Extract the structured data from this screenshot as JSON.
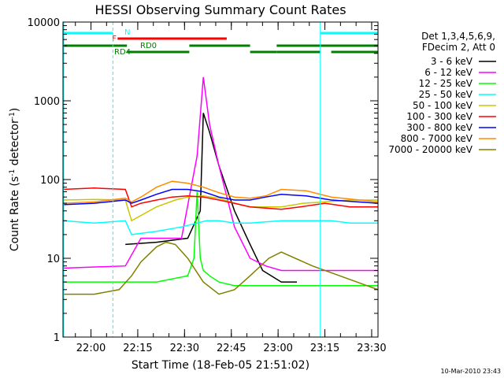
{
  "chart_data": {
    "type": "line",
    "title": "HESSI Observing Summary Count Rates",
    "xlabel": "Start Time (18-Feb-05 21:51:02)",
    "ylabel": "Count Rate (s⁻¹ detector⁻¹)",
    "ylabel_parts": [
      "Count Rate (s",
      "-1",
      " detector",
      "-1",
      ")"
    ],
    "yscale": "log",
    "ylim": [
      1,
      10000
    ],
    "xlim_minutes_after_21_51_02": [
      0,
      101
    ],
    "x_unit": "minutes after 21:51:02",
    "xticks": [
      {
        "label": "22:00",
        "x": 8.97
      },
      {
        "label": "22:15",
        "x": 23.97
      },
      {
        "label": "22:30",
        "x": 38.97
      },
      {
        "label": "22:45",
        "x": 53.97
      },
      {
        "label": "23:00",
        "x": 68.97
      },
      {
        "label": "23:15",
        "x": 83.97
      },
      {
        "label": "23:30",
        "x": 98.97
      }
    ],
    "yticks": [
      {
        "label": "1",
        "y": 1
      },
      {
        "label": "10",
        "y": 10
      },
      {
        "label": "100",
        "y": 100
      },
      {
        "label": "1000",
        "y": 1000
      },
      {
        "label": "10000",
        "y": 10000
      }
    ],
    "legend_header": [
      "Det 1,3,4,5,6,9,",
      "FDecim 2, Att 0"
    ],
    "legend_position": "right",
    "footer_date": "10-Mar-2010 23:43",
    "grid": false,
    "series": [
      {
        "name": "3 - 6 keV",
        "color": "#000000",
        "x": [
          0,
          20,
          30,
          40,
          44,
          45,
          47,
          50,
          55,
          60,
          64,
          70,
          75,
          77,
          86,
          92,
          101
        ],
        "y": [
          null,
          15,
          16,
          18,
          40,
          700,
          400,
          150,
          40,
          15,
          7,
          5,
          5,
          null,
          null,
          null,
          null
        ]
      },
      {
        "name": "6 - 12 keV",
        "color": "#ff00ff",
        "x": [
          0,
          20,
          25,
          30,
          38,
          43,
          45,
          47,
          50,
          55,
          60,
          65,
          70,
          77,
          85,
          90,
          101
        ],
        "y": [
          7.5,
          8,
          18,
          18,
          18,
          200,
          2000,
          500,
          150,
          25,
          10,
          8,
          7,
          7,
          7,
          7,
          7
        ]
      },
      {
        "name": "12 - 25 keV",
        "color": "#00ff00",
        "x": [
          0,
          22,
          30,
          40,
          42,
          43,
          44,
          45,
          47,
          50,
          55,
          60,
          68,
          75,
          80,
          85,
          101
        ],
        "y": [
          5,
          5,
          5,
          6,
          10,
          70,
          10,
          7,
          6,
          5,
          4.5,
          4.5,
          4.5,
          4.5,
          4.5,
          4.5,
          4.5
        ]
      },
      {
        "name": "25 - 50 keV",
        "color": "#00ffff",
        "x": [
          0,
          10,
          20,
          22,
          30,
          38,
          43,
          46,
          50,
          55,
          60,
          70,
          75,
          80,
          86,
          92,
          101
        ],
        "y": [
          30,
          28,
          30,
          20,
          22,
          25,
          28,
          30,
          30,
          28,
          28,
          30,
          30,
          30,
          30,
          28,
          28
        ]
      },
      {
        "name": "50 - 100 keV",
        "color": "#c8c800",
        "x": [
          0,
          10,
          20,
          22,
          25,
          30,
          36,
          40,
          45,
          50,
          55,
          60,
          70,
          77,
          84,
          92,
          101
        ],
        "y": [
          55,
          56,
          55,
          30,
          35,
          45,
          55,
          60,
          62,
          58,
          50,
          45,
          45,
          50,
          52,
          55,
          55
        ]
      },
      {
        "name": "100 - 300 keV",
        "color": "#ff0000",
        "x": [
          0,
          10,
          20,
          22,
          25,
          30,
          35,
          40,
          45,
          50,
          55,
          60,
          70,
          76,
          84,
          92,
          101
        ],
        "y": [
          75,
          78,
          75,
          45,
          50,
          55,
          60,
          62,
          60,
          55,
          50,
          45,
          42,
          45,
          50,
          45,
          45
        ]
      },
      {
        "name": "300 - 800 keV",
        "color": "#0000ff",
        "x": [
          0,
          10,
          20,
          22,
          25,
          30,
          35,
          40,
          45,
          50,
          55,
          60,
          65,
          70,
          78,
          86,
          101
        ],
        "y": [
          48,
          50,
          55,
          50,
          55,
          65,
          75,
          75,
          70,
          60,
          55,
          55,
          60,
          65,
          62,
          55,
          50
        ]
      },
      {
        "name": "800 - 7000 keV",
        "color": "#ff8c00",
        "x": [
          0,
          10,
          20,
          22,
          25,
          30,
          35,
          40,
          45,
          50,
          55,
          60,
          65,
          70,
          78,
          86,
          101
        ],
        "y": [
          50,
          52,
          58,
          52,
          60,
          80,
          95,
          90,
          80,
          68,
          60,
          58,
          62,
          75,
          72,
          60,
          52
        ]
      },
      {
        "name": "7000 - 20000 keV",
        "color": "#808000",
        "x": [
          0,
          10,
          18,
          22,
          25,
          30,
          33,
          36,
          40,
          45,
          50,
          55,
          60,
          66,
          70,
          80,
          101
        ],
        "y": [
          3.5,
          3.5,
          4,
          6,
          9,
          14,
          16,
          15,
          10,
          5,
          3.5,
          4,
          6,
          10,
          12,
          8,
          4
        ]
      }
    ],
    "annotations": {
      "flag_labels": [
        "N",
        "F",
        "RD0",
        "RD4"
      ],
      "shading": [
        {
          "label": "N",
          "color": "#00ffff",
          "segments": [
            [
              0,
              16
            ],
            [
              82.5,
              101
            ]
          ]
        },
        {
          "label": "F",
          "color": "#ff0000",
          "segments": [
            [
              17.5,
              52.5
            ]
          ]
        },
        {
          "label": "RD0",
          "color": "#008000",
          "segments": [
            [
              0,
              20.5
            ],
            [
              40.5,
              60
            ],
            [
              68.5,
              101
            ]
          ]
        },
        {
          "label": "RD4",
          "color": "#008000",
          "segments": [
            [
              20.5,
              40.5
            ],
            [
              60,
              68.5
            ],
            [
              68.5,
              82.5
            ],
            [
              86,
              101
            ]
          ]
        }
      ]
    }
  }
}
